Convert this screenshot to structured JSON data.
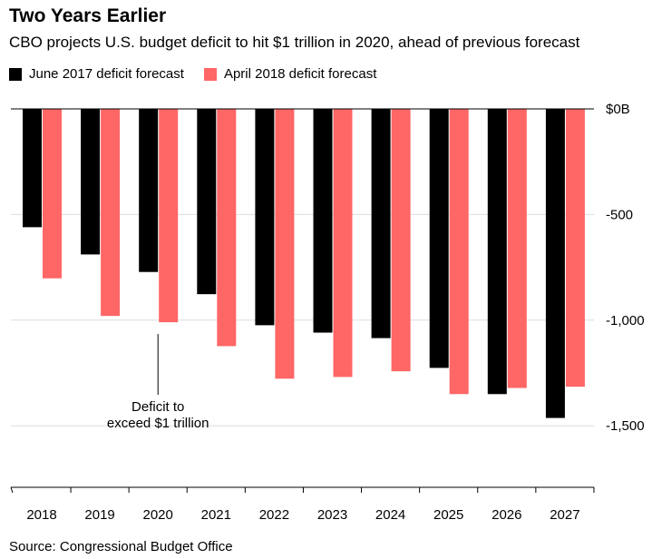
{
  "title": "Two Years Earlier",
  "subtitle": "CBO projects U.S. budget deficit to hit $1 trillion in 2020, ahead of previous forecast",
  "source": "Source: Congressional Budget Office",
  "chart_data": {
    "type": "bar",
    "categories": [
      "2018",
      "2019",
      "2020",
      "2021",
      "2022",
      "2023",
      "2024",
      "2025",
      "2026",
      "2027"
    ],
    "series": [
      {
        "name": "June 2017 deficit forecast",
        "color": "#000000",
        "values": [
          -560,
          -689,
          -772,
          -877,
          -1024,
          -1059,
          -1085,
          -1226,
          -1350,
          -1463
        ]
      },
      {
        "name": "April 2018 deficit forecast",
        "color": "#ff6666",
        "values": [
          -802,
          -980,
          -1010,
          -1123,
          -1277,
          -1269,
          -1242,
          -1350,
          -1321,
          -1315
        ]
      }
    ],
    "yticks": [
      {
        "value": 0,
        "label": "$0B"
      },
      {
        "value": -500,
        "label": "-500"
      },
      {
        "value": -1000,
        "label": "-1,000"
      },
      {
        "value": -1500,
        "label": "-1,500"
      }
    ],
    "ylim": [
      -1790,
      0
    ],
    "grid": true,
    "legend": "top-left",
    "annotation": {
      "lines": [
        "Deficit to",
        "exceed $1 trillion"
      ],
      "category": "2020"
    }
  }
}
